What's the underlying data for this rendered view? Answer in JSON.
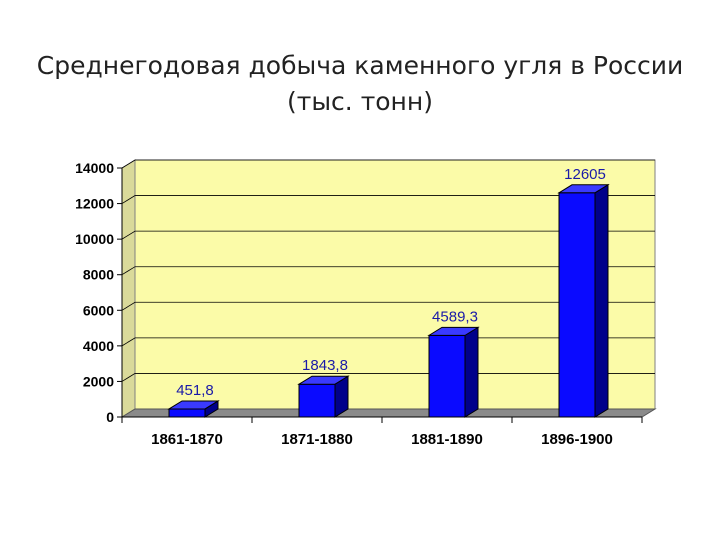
{
  "slide": {
    "title_line1": "Среднегодовая добыча каменного угля в России",
    "title_line2": "(тыс. тонн)"
  },
  "chart_data": {
    "type": "bar",
    "title": "Среднегодовая добыча каменного угля в России (тыс. тонн)",
    "categories": [
      "1861-1870",
      "1871-1880",
      "1881-1890",
      "1896-1900"
    ],
    "values": [
      451.8,
      1843.8,
      4589.3,
      12605
    ],
    "value_labels": [
      "451,8",
      "1843,8",
      "4589,3",
      "12605"
    ],
    "ylim": [
      0,
      14000
    ],
    "yticks": [
      0,
      2000,
      4000,
      6000,
      8000,
      10000,
      12000,
      14000
    ],
    "grid": true,
    "legend": "none",
    "style": "3d",
    "colors": {
      "bar_front": "#0a0aff",
      "bar_side": "#00008a",
      "bar_top": "#3a3aff",
      "plot_back": "#fbfba8",
      "plot_side": "#dada9a",
      "floor": "#8a8a8a",
      "value_label": "#1a1aa8"
    }
  }
}
